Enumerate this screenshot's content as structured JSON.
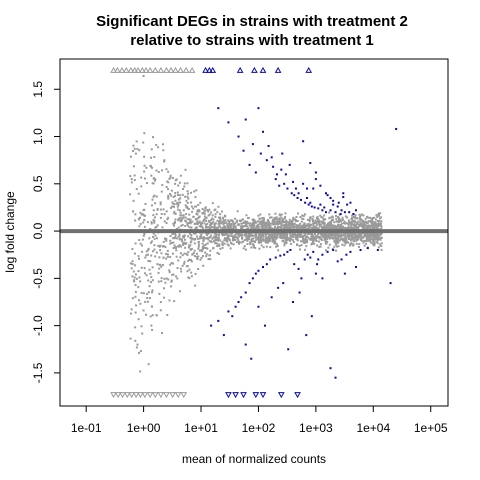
{
  "chart_data": {
    "type": "scatter",
    "title": [
      "Significant DEGs in strains with treatment 2",
      "relative to strains with treatment 1"
    ],
    "xlabel": "mean of normalized counts",
    "ylabel": "log fold change",
    "x_scale": "log10",
    "xlim": [
      0.035,
      200000
    ],
    "ylim": [
      -1.85,
      1.82
    ],
    "x_ticks": [
      "1e-01",
      "1e+00",
      "1e+01",
      "1e+02",
      "1e+03",
      "1e+04",
      "1e+05"
    ],
    "x_tick_values": [
      0.1,
      1,
      10,
      100,
      1000,
      10000,
      100000
    ],
    "y_ticks": [
      "1.5",
      "1.0",
      "0.5",
      "0.0",
      "-0.5",
      "-1.0",
      "-1.5"
    ],
    "y_tick_values": [
      1.5,
      1.0,
      0.5,
      0.0,
      -0.5,
      -1.0,
      -1.5
    ],
    "hline": {
      "y": 0,
      "color": "#707070"
    },
    "colors": {
      "not_significant": "#9a9a9a",
      "significant": "#0a0aa8"
    },
    "clipped": {
      "upper_y": 1.7,
      "lower_y": -1.73,
      "not_significant_up_x": [
        0.3,
        0.35,
        0.42,
        0.5,
        0.6,
        0.7,
        0.8,
        0.95,
        1.1,
        1.3,
        1.6,
        2.0,
        2.5,
        3.0,
        3.6,
        4.4,
        5.5,
        7.0
      ],
      "significant_up_x": [
        12,
        14,
        16,
        48,
        85,
        120,
        220,
        750
      ],
      "not_significant_down_x": [
        0.3,
        0.36,
        0.43,
        0.52,
        0.62,
        0.74,
        0.88,
        1.05,
        1.3,
        1.6,
        2.0,
        2.5,
        3.2,
        4.0,
        5.0
      ],
      "significant_down_x": [
        30,
        40,
        55,
        90,
        120,
        250,
        480
      ]
    },
    "series": [
      {
        "significant": true,
        "x": [
          20,
          30,
          45,
          55,
          70,
          90,
          100,
          120,
          150,
          170,
          200,
          230,
          260,
          300,
          350,
          400,
          450,
          500,
          600,
          700,
          800,
          900,
          1000,
          1200,
          1400,
          1600,
          2000,
          2500,
          3000,
          3500,
          4000,
          5000,
          25000,
          60,
          80,
          110,
          140,
          180,
          210,
          250,
          280,
          320,
          380,
          420,
          480,
          550,
          650,
          750,
          850,
          950,
          1100,
          1300,
          1500,
          1800,
          2200,
          2700,
          3200,
          3800,
          4500,
          600,
          700,
          800,
          1000,
          1200,
          1500,
          1800,
          2000,
          2400,
          2800,
          3000,
          15,
          20,
          30,
          40,
          50,
          60,
          70,
          80,
          90,
          100,
          120,
          140,
          160,
          200,
          240,
          280,
          320,
          360,
          420,
          500,
          560,
          640,
          720,
          800,
          900,
          1000,
          1100,
          1300,
          1600,
          2000,
          2400,
          2800,
          3400,
          4000,
          5000,
          6000,
          8000,
          12000,
          20000,
          25,
          35,
          45,
          60,
          75,
          100,
          130,
          170,
          220,
          270,
          330,
          400,
          520,
          680,
          850,
          1050,
          1300,
          2200,
          3200,
          1800
        ],
        "y": [
          1.3,
          1.15,
          1.0,
          0.85,
          0.7,
          0.62,
          1.3,
          1.05,
          0.9,
          0.78,
          0.55,
          0.48,
          0.82,
          0.6,
          0.7,
          0.52,
          0.45,
          0.4,
          0.5,
          0.35,
          0.3,
          0.45,
          0.55,
          0.28,
          0.25,
          0.38,
          0.32,
          0.3,
          0.4,
          0.28,
          0.3,
          0.22,
          1.08,
          1.18,
          0.92,
          0.82,
          0.75,
          0.68,
          0.6,
          0.65,
          0.5,
          0.45,
          0.4,
          0.38,
          0.35,
          0.33,
          0.3,
          0.28,
          0.26,
          0.25,
          0.24,
          0.22,
          0.2,
          0.22,
          0.2,
          0.18,
          0.2,
          0.2,
          0.18,
          0.95,
          0.45,
          0.72,
          0.62,
          0.48,
          0.4,
          0.35,
          0.28,
          0.26,
          0.22,
          0.36,
          -1.0,
          -0.95,
          -0.85,
          -0.8,
          -0.7,
          -0.65,
          -0.55,
          -0.5,
          -0.45,
          -0.42,
          -0.38,
          -0.35,
          -0.3,
          -0.28,
          -0.26,
          -0.25,
          -0.22,
          -0.2,
          -0.35,
          -0.4,
          -0.5,
          -0.3,
          -0.25,
          -0.28,
          -0.22,
          -0.45,
          -0.3,
          -0.25,
          -0.22,
          -0.2,
          -0.32,
          -0.3,
          -0.25,
          -0.22,
          -0.38,
          -0.2,
          -0.18,
          -0.2,
          -0.55,
          -1.1,
          -0.9,
          -0.75,
          -1.2,
          -1.35,
          -0.8,
          -1.0,
          -0.7,
          -0.6,
          -0.55,
          -1.25,
          -0.75,
          -0.65,
          -1.1,
          -0.9,
          -0.35,
          -0.5,
          -1.55,
          -0.45,
          -1.45
        ]
      }
    ]
  }
}
